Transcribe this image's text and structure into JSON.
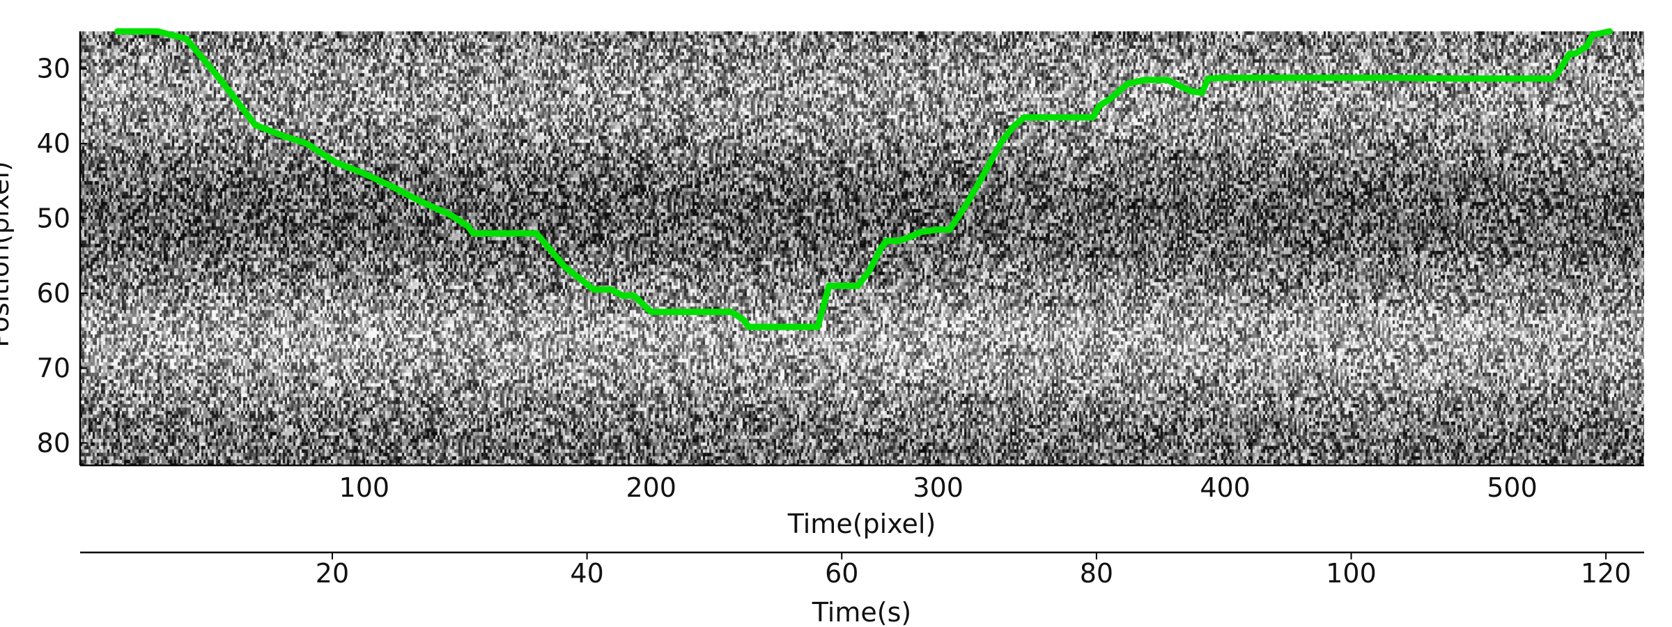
{
  "chart_data": {
    "type": "line",
    "background": "noisy grayscale kymograph image",
    "title": "",
    "xlabel": "Time(pixel)",
    "ylabel": "Position(pixel)",
    "xlim": [
      1,
      546
    ],
    "ylim": [
      83,
      25
    ],
    "y_inverted": true,
    "xticks": [
      100,
      200,
      300,
      400,
      500
    ],
    "yticks": [
      30,
      40,
      50,
      60,
      70,
      80
    ],
    "secondary_x_axis": {
      "label": "Time(s)",
      "lim": [
        0.2,
        123.0
      ],
      "ticks": [
        20,
        40,
        60,
        80,
        100,
        120
      ]
    },
    "grid": false,
    "series": [
      {
        "color": "#00e000",
        "x": [
          14,
          28,
          38,
          50,
          62,
          72,
          80,
          90,
          100,
          110,
          120,
          130,
          136,
          138,
          142,
          150,
          160,
          170,
          180,
          186,
          190,
          194,
          200,
          206,
          212,
          220,
          228,
          232,
          234,
          240,
          250,
          256,
          258,
          262,
          264,
          268,
          272,
          276,
          280,
          282,
          286,
          290,
          294,
          300,
          304,
          310,
          316,
          322,
          326,
          330,
          340,
          350,
          354,
          356,
          360,
          366,
          372,
          380,
          388,
          392,
          394,
          400,
          420,
          440,
          460,
          480,
          500,
          514,
          516,
          520,
          522,
          526,
          528,
          534
        ],
        "y": [
          25,
          25,
          26,
          31.5,
          37.5,
          39,
          40,
          42.5,
          44,
          45.8,
          47.8,
          49.5,
          51,
          52,
          52,
          52,
          52,
          56.5,
          59.5,
          59.5,
          60.3,
          60.3,
          62.5,
          62.5,
          62.5,
          62.5,
          62.5,
          63.5,
          64.5,
          64.5,
          64.5,
          64.5,
          64.5,
          59,
          59,
          59,
          59,
          57,
          54,
          53,
          53,
          52.5,
          51.8,
          51.5,
          51.5,
          48,
          44,
          39.8,
          37.8,
          36.5,
          36.5,
          36.5,
          36.5,
          35,
          34,
          32,
          31.5,
          31.5,
          33,
          33.2,
          31.3,
          31.2,
          31.2,
          31.2,
          31.2,
          31.3,
          31.3,
          31.3,
          30.5,
          28,
          28,
          27,
          25.5,
          25
        ]
      }
    ]
  }
}
